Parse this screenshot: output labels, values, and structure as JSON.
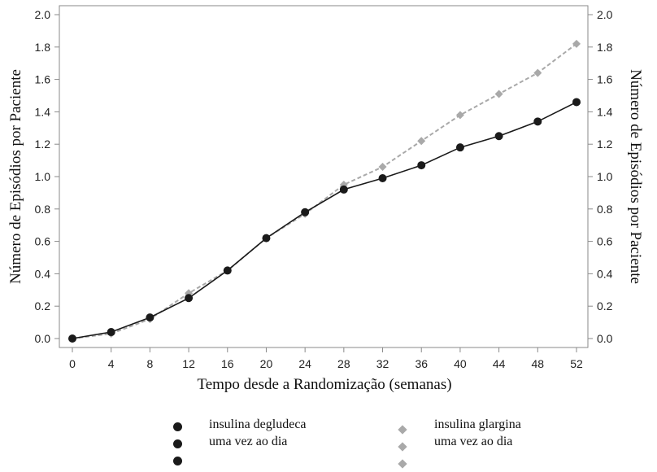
{
  "chart_data": {
    "type": "line",
    "xlabel": "Tempo desde a Randomização (semanas)",
    "ylabel": "Número de Episódios por Paciente",
    "ylabel_right": "Número de Episódios por Paciente",
    "xlim": [
      0,
      52
    ],
    "ylim": [
      0,
      2.0
    ],
    "x_ticks": [
      "0",
      "4",
      "8",
      "12",
      "16",
      "20",
      "24",
      "28",
      "32",
      "36",
      "40",
      "44",
      "48",
      "52"
    ],
    "y_ticks": [
      "0.0",
      "0.2",
      "0.4",
      "0.6",
      "0.8",
      "1.0",
      "1.2",
      "1.4",
      "1.6",
      "1.8",
      "2.0"
    ],
    "grid": false,
    "legend_position": "bottom",
    "series": [
      {
        "name": "insulina degludeca uma vez ao dia",
        "name_lines": [
          "insulina degludeca",
          "uma vez ao dia"
        ],
        "color": "#1a1a1a",
        "marker": "circle",
        "line": "solid",
        "x": [
          0,
          4,
          8,
          12,
          16,
          20,
          24,
          28,
          32,
          36,
          40,
          44,
          48,
          52
        ],
        "values": [
          0.0,
          0.04,
          0.13,
          0.25,
          0.42,
          0.62,
          0.78,
          0.92,
          0.99,
          1.07,
          1.18,
          1.25,
          1.34,
          1.46
        ]
      },
      {
        "name": "insulina glargina uma vez ao dia",
        "name_lines": [
          "insulina glargina",
          "uma vez ao dia"
        ],
        "color": "#a9a9a9",
        "marker": "diamond",
        "line": "dashed",
        "x": [
          0,
          4,
          8,
          12,
          16,
          20,
          24,
          28,
          32,
          36,
          40,
          44,
          48,
          52
        ],
        "values": [
          0.0,
          0.03,
          0.12,
          0.28,
          0.42,
          0.62,
          0.77,
          0.95,
          1.06,
          1.22,
          1.38,
          1.51,
          1.64,
          1.82
        ]
      }
    ]
  }
}
